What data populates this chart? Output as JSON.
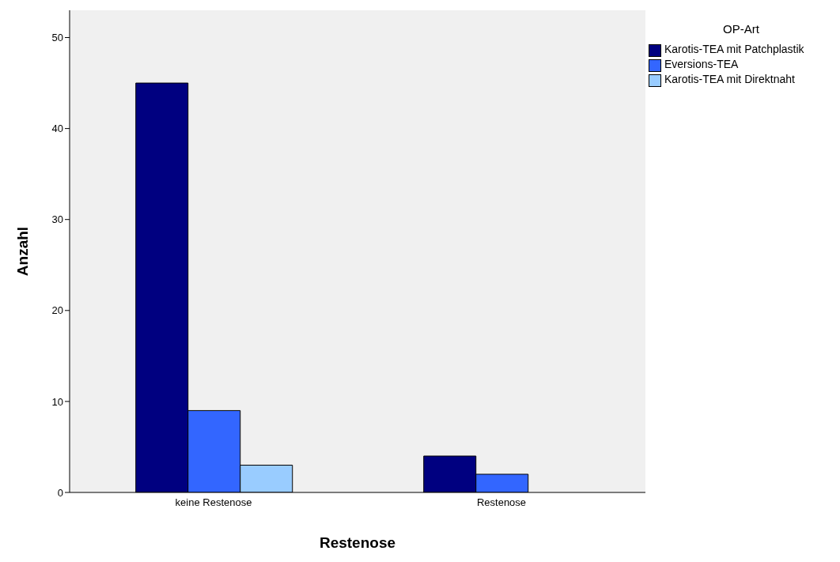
{
  "chart_data": {
    "type": "bar",
    "xlabel": "Restenose",
    "ylabel": "Anzahl",
    "legend_title": "OP-Art",
    "categories": [
      "keine Restenose",
      "Restenose"
    ],
    "series": [
      {
        "name": "Karotis-TEA mit Patchplastik",
        "color": "#000080",
        "values": [
          45,
          4
        ]
      },
      {
        "name": "Eversions-TEA",
        "color": "#3366ff",
        "values": [
          9,
          2
        ]
      },
      {
        "name": "Karotis-TEA mit Direktnaht",
        "color": "#99ccff",
        "values": [
          3,
          0
        ]
      }
    ],
    "ylim": [
      0,
      53
    ],
    "yticks": [
      0,
      10,
      20,
      30,
      40,
      50
    ],
    "grid": false,
    "legend": "top right"
  }
}
